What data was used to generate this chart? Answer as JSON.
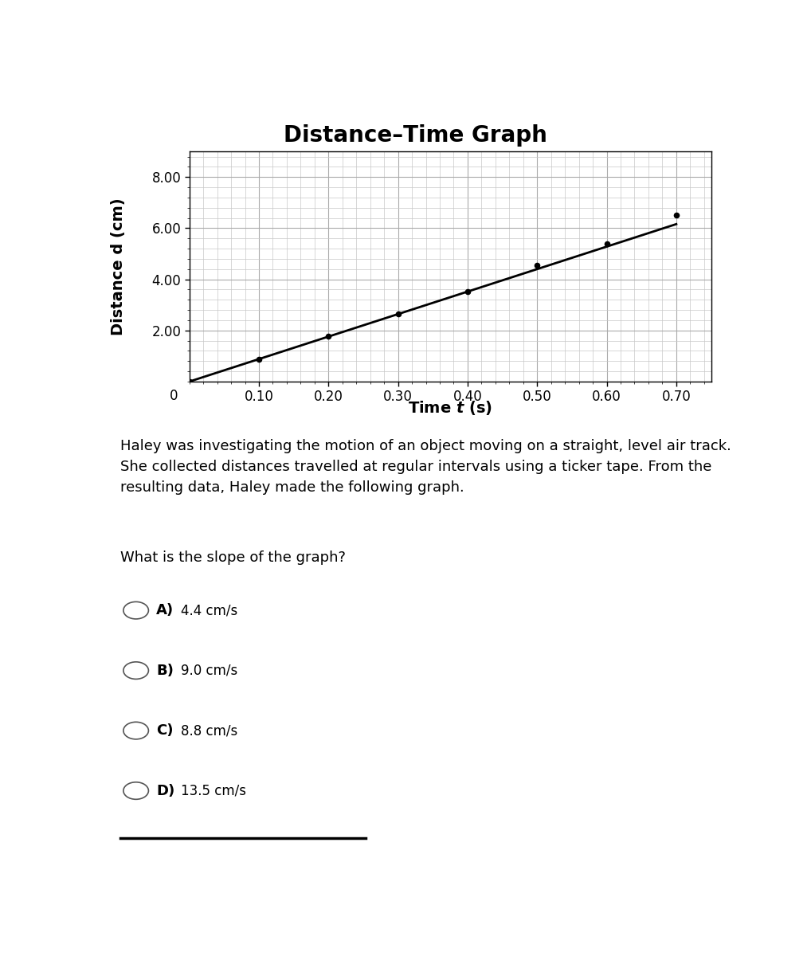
{
  "title": "Distance–Time Graph",
  "xlabel_parts": [
    "Time ",
    "t",
    " (s)"
  ],
  "ylabel": "Distance d (cm)",
  "x_data": [
    0.0,
    0.1,
    0.2,
    0.3,
    0.4,
    0.5,
    0.6,
    0.7
  ],
  "y_data": [
    0.0,
    0.88,
    1.76,
    2.64,
    3.52,
    4.4,
    5.28,
    6.16
  ],
  "scatter_x": [
    0.0,
    0.1,
    0.2,
    0.3,
    0.4,
    0.5,
    0.6,
    0.7
  ],
  "scatter_y": [
    0.0,
    0.88,
    1.76,
    2.65,
    3.52,
    4.55,
    5.4,
    6.5
  ],
  "xlim": [
    0,
    0.75
  ],
  "ylim": [
    0,
    9.0
  ],
  "xticks": [
    0.1,
    0.2,
    0.3,
    0.4,
    0.5,
    0.6,
    0.7
  ],
  "yticks": [
    2.0,
    4.0,
    6.0,
    8.0
  ],
  "graph_bg": "#d4d4d4",
  "plot_bg": "#ffffff",
  "outer_bg": "#ffffff",
  "line_color": "#000000",
  "scatter_color": "#000000",
  "title_fontsize": 20,
  "axis_label_fontsize": 14,
  "tick_fontsize": 12,
  "paragraph": "Haley was investigating the motion of an object moving on a straight, level air track.\nShe collected distances travelled at regular intervals using a ticker tape. From the\nresulting data, Haley made the following graph.",
  "question": "What is the slope of the graph?",
  "choices": [
    {
      "letter": "A)",
      "text": "4.4 cm/s"
    },
    {
      "letter": "B)",
      "text": "9.0 cm/s"
    },
    {
      "letter": "C)",
      "text": "8.8 cm/s"
    },
    {
      "letter": "D)",
      "text": "13.5 cm/s"
    }
  ],
  "choice_letter_fontsize": 13,
  "choice_text_fontsize": 12,
  "paragraph_fontsize": 13,
  "question_fontsize": 13
}
